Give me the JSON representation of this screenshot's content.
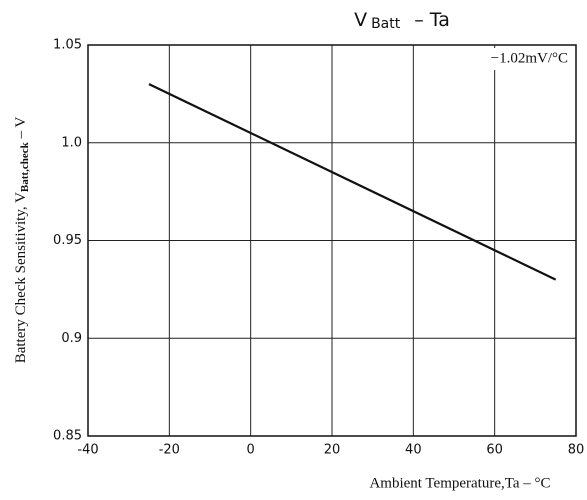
{
  "chart_data": {
    "type": "line",
    "title": [
      "V",
      "Batt",
      "–  Ta"
    ],
    "y_label": [
      "Battery Check Sensitivity, V",
      "Batt,check",
      " – V"
    ],
    "x_label": "Ambient Temperature,Ta – °C",
    "annotation": "−1.02mV/°C",
    "x": [
      -25,
      75
    ],
    "series": [
      {
        "color": "#111111",
        "values": [
          1.03,
          0.93
        ]
      }
    ],
    "xlim": [
      -40,
      80
    ],
    "xticks": [
      -40,
      -20,
      0,
      20,
      40,
      60,
      80
    ],
    "ylim": [
      0.85,
      1.05
    ],
    "yticks": [
      0.85,
      0.9,
      0.95,
      {
        "value": 1,
        "label": "1.0"
      },
      1.05
    ],
    "grid": true
  }
}
